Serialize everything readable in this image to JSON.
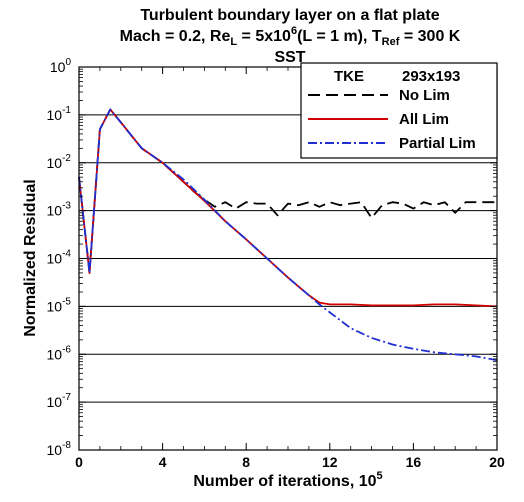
{
  "chart_data": {
    "type": "line",
    "title": {
      "line1": "Turbulent boundary layer on a flat plate",
      "line2_parts": [
        "Mach = 0.2, Re",
        "L",
        " = 5x10",
        "6",
        "(L = 1 m), T",
        "Ref",
        " = 300 K"
      ],
      "line3": "SST"
    },
    "xlabel": {
      "base": "Number of iterations, 10",
      "sup": "5"
    },
    "ylabel": "Normalized Residual",
    "xlim": [
      0,
      20
    ],
    "xticks": [
      0,
      4,
      8,
      12,
      16,
      20
    ],
    "yscale": "log",
    "ylim_exp": [
      -8,
      0
    ],
    "ytick_exps": [
      -8,
      -7,
      -6,
      -5,
      -4,
      -3,
      -2,
      -1,
      0
    ],
    "ytick_base": "10",
    "grid": "y-major",
    "legend": {
      "position": "top-right",
      "header_left": "TKE",
      "header_right": "293x193"
    },
    "series": [
      {
        "name": "No Lim",
        "color": "#000000",
        "dash": "long-dash",
        "x": [
          0,
          0.5,
          1.0,
          1.5,
          2.0,
          3.0,
          4.0,
          5.0,
          5.5,
          6.0,
          6.5,
          7.0,
          7.5,
          8.0,
          8.5,
          9.0,
          9.5,
          10.0,
          10.5,
          11.0,
          11.5,
          12.0,
          12.5,
          13.0,
          13.5,
          14.0,
          14.5,
          15.0,
          15.5,
          16.0,
          16.5,
          17.0,
          17.5,
          18.0,
          18.5,
          19.0,
          19.5,
          20.0
        ],
        "y": [
          0.005,
          5e-05,
          0.05,
          0.13,
          0.07,
          0.02,
          0.01,
          0.004,
          0.0025,
          0.0017,
          0.0012,
          0.0015,
          0.0011,
          0.0015,
          0.0014,
          0.0014,
          0.0008,
          0.0014,
          0.0013,
          0.0015,
          0.0012,
          0.0015,
          0.0013,
          0.0014,
          0.0015,
          0.0007,
          0.0013,
          0.0015,
          0.0014,
          0.0011,
          0.0015,
          0.0013,
          0.0015,
          0.0009,
          0.0015,
          0.0015,
          0.0015,
          0.0015
        ]
      },
      {
        "name": "All Lim",
        "color": "#d00000",
        "dash": "solid",
        "x": [
          0,
          0.5,
          1.0,
          1.5,
          2.0,
          3.0,
          4.0,
          5.0,
          6.0,
          7.0,
          8.0,
          9.0,
          10.0,
          11.0,
          11.5,
          12.0,
          12.5,
          13.0,
          14.0,
          15.0,
          16.0,
          17.0,
          18.0,
          19.0,
          20.0
        ],
        "y": [
          0.005,
          5e-05,
          0.05,
          0.13,
          0.07,
          0.02,
          0.01,
          0.004,
          0.0016,
          0.0006,
          0.00025,
          0.0001,
          4e-05,
          1.7e-05,
          1.2e-05,
          1.1e-05,
          1.1e-05,
          1.1e-05,
          1.05e-05,
          1.05e-05,
          1.05e-05,
          1.1e-05,
          1.1e-05,
          1.05e-05,
          1e-05
        ]
      },
      {
        "name": "Partial Lim",
        "color": "#2030d0",
        "dash": "dash-dot",
        "x": [
          0,
          0.5,
          1.0,
          1.5,
          2.0,
          3.0,
          4.0,
          5.0,
          6.0,
          7.0,
          8.0,
          9.0,
          10.0,
          11.0,
          11.5,
          12.0,
          13.0,
          14.0,
          15.0,
          16.0,
          17.0,
          18.0,
          19.0,
          20.0
        ],
        "y": [
          0.005,
          5e-05,
          0.05,
          0.13,
          0.07,
          0.02,
          0.01,
          0.0045,
          0.0017,
          0.0006,
          0.00025,
          0.0001,
          4e-05,
          1.7e-05,
          1.1e-05,
          7.5e-06,
          3.5e-06,
          2.2e-06,
          1.6e-06,
          1.3e-06,
          1.1e-06,
          1e-06,
          9e-07,
          7.5e-07
        ]
      }
    ]
  }
}
